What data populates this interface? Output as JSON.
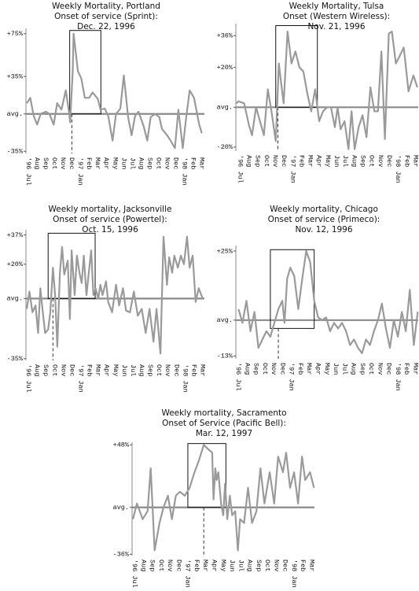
{
  "chart_data": [
    {
      "type": "line",
      "title": "Weekly Mortality, Portland",
      "subtitle": "Onset of service (Sprint):",
      "onset_date": "Dec. 22, 1996",
      "xlim": [
        -0.3,
        20.3
      ],
      "ylim": [
        -37,
        80
      ],
      "yticks": [
        {
          "value": 75,
          "label": "+75%"
        },
        {
          "value": 35,
          "label": "+35%"
        },
        {
          "value": 0,
          "label": "avg."
        },
        {
          "value": -35,
          "label": "-35%"
        }
      ],
      "xticks": [
        {
          "value": 0,
          "label": "'96 Jul"
        },
        {
          "value": 1,
          "label": "Aug"
        },
        {
          "value": 2,
          "label": "Sep"
        },
        {
          "value": 3,
          "label": "Oct"
        },
        {
          "value": 4,
          "label": "Nov"
        },
        {
          "value": 5,
          "label": "Dec"
        },
        {
          "value": 6,
          "label": "'97 Jan"
        },
        {
          "value": 7,
          "label": "Feb"
        },
        {
          "value": 8,
          "label": "Mar"
        },
        {
          "value": 9,
          "label": "Apr"
        },
        {
          "value": 10,
          "label": "May"
        },
        {
          "value": 11,
          "label": "Jun"
        },
        {
          "value": 12,
          "label": "Jul"
        },
        {
          "value": 13,
          "label": "Aug"
        },
        {
          "value": 14,
          "label": "Sep"
        },
        {
          "value": 15,
          "label": "Oct"
        },
        {
          "value": 16,
          "label": "Nov"
        },
        {
          "value": 17,
          "label": "Dec"
        },
        {
          "value": 18,
          "label": "'98 Jan"
        },
        {
          "value": 19,
          "label": "Feb"
        },
        {
          "value": 20,
          "label": "Mar"
        }
      ],
      "highlight": {
        "x": [
          4.75,
          8.35
        ],
        "y": [
          0,
          78
        ]
      },
      "onset_x": 5.0,
      "x": [
        -0.2,
        0.2,
        0.6,
        1,
        1.4,
        2,
        2.4,
        2.9,
        3.3,
        3.8,
        4.3,
        4.7,
        4.8,
        5.1,
        5.2,
        5.7,
        6.1,
        6.5,
        7,
        7.4,
        8,
        8.3,
        8.8,
        9.2,
        9.7,
        10.1,
        10.6,
        11,
        11.5,
        11.9,
        12.3,
        12.7,
        13.3,
        13.7,
        14.1,
        14.6,
        15.1,
        15.4,
        16,
        16.4,
        16.9,
        17.3,
        17.8,
        18.2,
        18.6,
        19.1,
        19.7,
        20
      ],
      "series": [
        {
          "color": "#9a9a9a",
          "values": [
            10,
            15,
            -2,
            -10,
            0,
            2,
            0,
            -10,
            10,
            4,
            22,
            0,
            -8,
            40,
            75,
            40,
            33,
            15,
            15,
            20,
            14,
            4,
            5,
            -2,
            -25,
            0,
            5,
            36,
            -3,
            -20,
            -2,
            2,
            -12,
            -25,
            -3,
            0,
            -3,
            -14,
            -20,
            -25,
            -32,
            4,
            -32,
            -3,
            22,
            15,
            -10,
            -18
          ]
        }
      ]
    },
    {
      "type": "line",
      "title": "Weekly Mortality, Tulsa",
      "subtitle": "Onset (Western Wireless):",
      "onset_date": "Nov. 21, 1996",
      "xlim": [
        -0.5,
        20.3
      ],
      "ylim": [
        -22,
        42
      ],
      "yticks": [
        {
          "value": 36,
          "label": "+36%"
        },
        {
          "value": 20,
          "label": "+20%"
        },
        {
          "value": 0,
          "label": "avg."
        },
        {
          "value": -20,
          "label": "-20%"
        }
      ],
      "xticks": [
        {
          "value": 0,
          "label": "'96 Jul"
        },
        {
          "value": 1,
          "label": "Aug"
        },
        {
          "value": 2,
          "label": "Sep"
        },
        {
          "value": 3,
          "label": "Oct"
        },
        {
          "value": 4,
          "label": "Nov"
        },
        {
          "value": 5,
          "label": "Dec"
        },
        {
          "value": 6,
          "label": "'97 Jan"
        },
        {
          "value": 7,
          "label": "Feb"
        },
        {
          "value": 8,
          "label": "Mar"
        },
        {
          "value": 9,
          "label": "Apr"
        },
        {
          "value": 10,
          "label": "May"
        },
        {
          "value": 11,
          "label": "Jun"
        },
        {
          "value": 12,
          "label": "Jul"
        },
        {
          "value": 13,
          "label": "Aug"
        },
        {
          "value": 14,
          "label": "Sep"
        },
        {
          "value": 15,
          "label": "Oct"
        },
        {
          "value": 16,
          "label": "Nov"
        },
        {
          "value": 17,
          "label": "Dec"
        },
        {
          "value": 18,
          "label": "'98 Jan"
        },
        {
          "value": 19,
          "label": "Feb"
        },
        {
          "value": 20,
          "label": "Mar"
        }
      ],
      "highlight": {
        "x": [
          4.05,
          8.8
        ],
        "y": [
          0,
          41
        ]
      },
      "onset_x": 4.3,
      "x": [
        -0.45,
        -0.2,
        0.45,
        1,
        1.35,
        1.8,
        2.25,
        2.7,
        3.15,
        3.6,
        4.05,
        4.4,
        4.7,
        4.95,
        5.4,
        5.85,
        6.3,
        6.75,
        7.2,
        7.65,
        8.1,
        8.55,
        9,
        9.45,
        9.9,
        10.35,
        10.8,
        11.1,
        11.45,
        11.9,
        12.35,
        12.7,
        13.05,
        13.5,
        13.95,
        14.4,
        14.85,
        15.3,
        15.7,
        16.1,
        16.5,
        16.95,
        17.3,
        17.75,
        18.1,
        18.65,
        19.2,
        19.75,
        20.2
      ],
      "series": [
        {
          "color": "#9a9a9a",
          "values": [
            2,
            3,
            2,
            -9,
            -14,
            0,
            -7,
            -14,
            9,
            -3,
            -17,
            22,
            11,
            2,
            38,
            22,
            28,
            20,
            18,
            7,
            -2,
            9,
            -7,
            -2,
            0,
            0,
            -10,
            0,
            -11,
            -7,
            -21,
            -2,
            -21,
            -10,
            -4,
            -15,
            10,
            -2,
            -2,
            28,
            -16,
            37,
            38,
            22,
            25,
            30,
            8,
            16,
            10
          ]
        }
      ]
    },
    {
      "type": "line",
      "title": "Weekly mortality, Jacksonville",
      "subtitle": "Onset of service (Powertel):",
      "onset_date": "Oct. 15, 1996",
      "xlim": [
        -0.3,
        20.2
      ],
      "ylim": [
        -36,
        40
      ],
      "yticks": [
        {
          "value": 37,
          "label": "+37%"
        },
        {
          "value": 20,
          "label": "+20%"
        },
        {
          "value": 0,
          "label": "avg."
        },
        {
          "value": -35,
          "label": "-35%"
        }
      ],
      "xticks": [
        {
          "value": 0,
          "label": "'96 Jul"
        },
        {
          "value": 1,
          "label": "Aug"
        },
        {
          "value": 2,
          "label": "Sep"
        },
        {
          "value": 3,
          "label": "Oct"
        },
        {
          "value": 4,
          "label": "Nov"
        },
        {
          "value": 5,
          "label": "Dec"
        },
        {
          "value": 6,
          "label": "'97 Jan"
        },
        {
          "value": 7,
          "label": "Feb"
        },
        {
          "value": 8,
          "label": "Mar"
        },
        {
          "value": 9,
          "label": "Apr"
        },
        {
          "value": 10,
          "label": "May"
        },
        {
          "value": 11,
          "label": "Jun"
        },
        {
          "value": 12,
          "label": "Jul"
        },
        {
          "value": 13,
          "label": "Aug"
        },
        {
          "value": 14,
          "label": "Sep"
        },
        {
          "value": 15,
          "label": "Oct"
        },
        {
          "value": 16,
          "label": "Nov"
        },
        {
          "value": 17,
          "label": "Dec"
        },
        {
          "value": 18,
          "label": "'98 Jan"
        },
        {
          "value": 19,
          "label": "Feb"
        },
        {
          "value": 20,
          "label": "Mar"
        }
      ],
      "highlight": {
        "x": [
          2.25,
          7.65
        ],
        "y": [
          0,
          38
        ]
      },
      "onset_x": 2.8,
      "x": [
        -0.2,
        0.1,
        0.45,
        0.8,
        1.1,
        1.35,
        1.6,
        1.9,
        2.25,
        2.5,
        2.8,
        3.05,
        3.3,
        3.6,
        3.85,
        4.1,
        4.5,
        4.75,
        4.95,
        5.3,
        5.55,
        5.85,
        6.1,
        6.35,
        6.65,
        6.9,
        7.2,
        7.45,
        7.7,
        8,
        8.25,
        8.5,
        8.9,
        9.15,
        9.6,
        10.05,
        10.4,
        10.85,
        11.2,
        11.65,
        12.1,
        12.55,
        13,
        13.45,
        13.9,
        14.35,
        14.7,
        15.15,
        15.5,
        15.9,
        16.15,
        16.5,
        16.75,
        17.15,
        17.5,
        17.85,
        18.2,
        18.5,
        18.85,
        19.2,
        19.55,
        20
      ],
      "series": [
        {
          "color": "#9a9a9a",
          "values": [
            -6,
            4,
            -8,
            -4,
            -20,
            6,
            -6,
            -20,
            -18,
            -8,
            18,
            2,
            -28,
            15,
            30,
            14,
            22,
            -12,
            28,
            2,
            25,
            15,
            9,
            25,
            2,
            14,
            28,
            2,
            6,
            0,
            8,
            2,
            10,
            -2,
            -8,
            8,
            -4,
            6,
            -7,
            -8,
            4,
            -10,
            -6,
            -20,
            -6,
            -25,
            -6,
            -32,
            36,
            8,
            24,
            15,
            25,
            18,
            25,
            20,
            36,
            18,
            25,
            -2,
            6,
            0
          ]
        }
      ]
    },
    {
      "type": "line",
      "title": "Weekly mortality, Chicago",
      "subtitle": "Onset of service (Primeco):",
      "onset_date": "Nov. 12, 1996",
      "xlim": [
        -0.3,
        20.3
      ],
      "ylim": [
        -14,
        27
      ],
      "yticks": [
        {
          "value": 25,
          "label": "+25%"
        },
        {
          "value": 0,
          "label": "avg."
        },
        {
          "value": -13,
          "label": "-13%"
        }
      ],
      "xticks": [
        {
          "value": 0,
          "label": "'96 Jul"
        },
        {
          "value": 1,
          "label": "Aug"
        },
        {
          "value": 2,
          "label": "Sep"
        },
        {
          "value": 3,
          "label": "Oct"
        },
        {
          "value": 4,
          "label": "Nov"
        },
        {
          "value": 5,
          "label": "Dec"
        },
        {
          "value": 6,
          "label": "'97 Jan"
        },
        {
          "value": 7,
          "label": "Feb"
        },
        {
          "value": 8,
          "label": "Mar"
        },
        {
          "value": 9,
          "label": "Apr"
        },
        {
          "value": 10,
          "label": "May"
        },
        {
          "value": 11,
          "label": "Jun"
        },
        {
          "value": 12,
          "label": "Jul"
        },
        {
          "value": 13,
          "label": "Aug"
        },
        {
          "value": 14,
          "label": "Sep"
        },
        {
          "value": 15,
          "label": "Oct"
        },
        {
          "value": 16,
          "label": "Nov"
        },
        {
          "value": 17,
          "label": "Dec"
        },
        {
          "value": 18,
          "label": "'98 Jan"
        },
        {
          "value": 19,
          "label": "Feb"
        },
        {
          "value": 20,
          "label": "Mar"
        }
      ],
      "highlight": {
        "x": [
          3.6,
          8.55
        ],
        "y": [
          -3,
          25.5
        ]
      },
      "onset_x": 4.5,
      "x": [
        0,
        0.45,
        0.9,
        1.35,
        1.8,
        2.25,
        2.7,
        3.15,
        3.6,
        4.05,
        4.5,
        4.95,
        5.2,
        5.5,
        5.85,
        6.3,
        6.75,
        7.2,
        7.65,
        8.1,
        8.55,
        9,
        9.45,
        9.9,
        10.35,
        10.8,
        11.25,
        11.7,
        12.15,
        12.6,
        13.05,
        13.5,
        13.95,
        14.4,
        14.85,
        15.3,
        15.75,
        16.2,
        16.65,
        17.1,
        17.55,
        18,
        18.45,
        18.9,
        19.35,
        19.8,
        20.25
      ],
      "series": [
        {
          "color": "#9a9a9a",
          "values": [
            4,
            -1,
            7,
            -4,
            3,
            -10,
            -7,
            -4,
            -6,
            -1,
            4,
            7,
            -1,
            15,
            19,
            16,
            4,
            15,
            25,
            21,
            7,
            1,
            0,
            1,
            -4,
            -1,
            -3,
            -1,
            -4,
            -9,
            -7,
            -10,
            -12,
            -7,
            -9,
            -4,
            0,
            6,
            -3,
            -10,
            0,
            -6,
            3,
            -4,
            11,
            -9,
            3
          ]
        }
      ]
    },
    {
      "type": "line",
      "title": "Weekly mortality, Sacramento",
      "subtitle": "Onset of Service (Pacific Bell):",
      "onset_date": "Mar. 12, 1997",
      "xlim": [
        -0.3,
        20.3
      ],
      "ylim": [
        -37,
        50
      ],
      "yticks": [
        {
          "value": 48,
          "label": "+48%"
        },
        {
          "value": 0,
          "label": "avg."
        },
        {
          "value": -36,
          "label": "-36%"
        }
      ],
      "xticks": [
        {
          "value": 0,
          "label": "'96 Jul"
        },
        {
          "value": 1,
          "label": "Aug"
        },
        {
          "value": 2,
          "label": "Sep"
        },
        {
          "value": 3,
          "label": "Oct"
        },
        {
          "value": 4,
          "label": "Nov"
        },
        {
          "value": 5,
          "label": "Dec"
        },
        {
          "value": 6,
          "label": "'97 Jan"
        },
        {
          "value": 7,
          "label": "Feb"
        },
        {
          "value": 8,
          "label": "Mar"
        },
        {
          "value": 9,
          "label": "Apr"
        },
        {
          "value": 10,
          "label": "May"
        },
        {
          "value": 11,
          "label": "Jun"
        },
        {
          "value": 12,
          "label": "Jul"
        },
        {
          "value": 13,
          "label": "Aug"
        },
        {
          "value": 14,
          "label": "Sep"
        },
        {
          "value": 15,
          "label": "Oct"
        },
        {
          "value": 16,
          "label": "Nov"
        },
        {
          "value": 17,
          "label": "Dec"
        },
        {
          "value": 18,
          "label": "'98 Jan"
        },
        {
          "value": 19,
          "label": "Feb"
        },
        {
          "value": 20,
          "label": "Mar"
        }
      ],
      "highlight": {
        "x": [
          6.0,
          10.3
        ],
        "y": [
          0,
          49
        ]
      },
      "onset_x": 7.8,
      "x": [
        -0.2,
        0.25,
        0.9,
        1.45,
        1.8,
        2.25,
        2.8,
        3.25,
        3.75,
        4.2,
        4.65,
        5.1,
        5.65,
        6.2,
        6.75,
        7.25,
        7.8,
        8.25,
        8.75,
        8.9,
        9.1,
        9.25,
        9.45,
        9.75,
        10,
        10.2,
        10.45,
        10.75,
        11,
        11.35,
        11.65,
        11.9,
        12.35,
        12.8,
        13.25,
        13.75,
        14.2,
        14.65,
        15.25,
        15.75,
        16.2,
        16.75,
        17.1,
        17.55,
        18,
        18.45,
        18.9,
        19.25,
        19.8,
        20.25
      ],
      "series": [
        {
          "color": "#9a9a9a",
          "values": [
            -9,
            3,
            -9,
            -3,
            30,
            -33,
            -12,
            0,
            9,
            -9,
            9,
            12,
            9,
            15,
            27,
            36,
            48,
            45,
            42,
            6,
            30,
            21,
            27,
            3,
            -6,
            18,
            -9,
            9,
            -6,
            -3,
            -33,
            -9,
            -12,
            15,
            -12,
            -3,
            30,
            3,
            27,
            3,
            39,
            27,
            42,
            15,
            27,
            3,
            39,
            21,
            27,
            15
          ]
        }
      ]
    }
  ]
}
